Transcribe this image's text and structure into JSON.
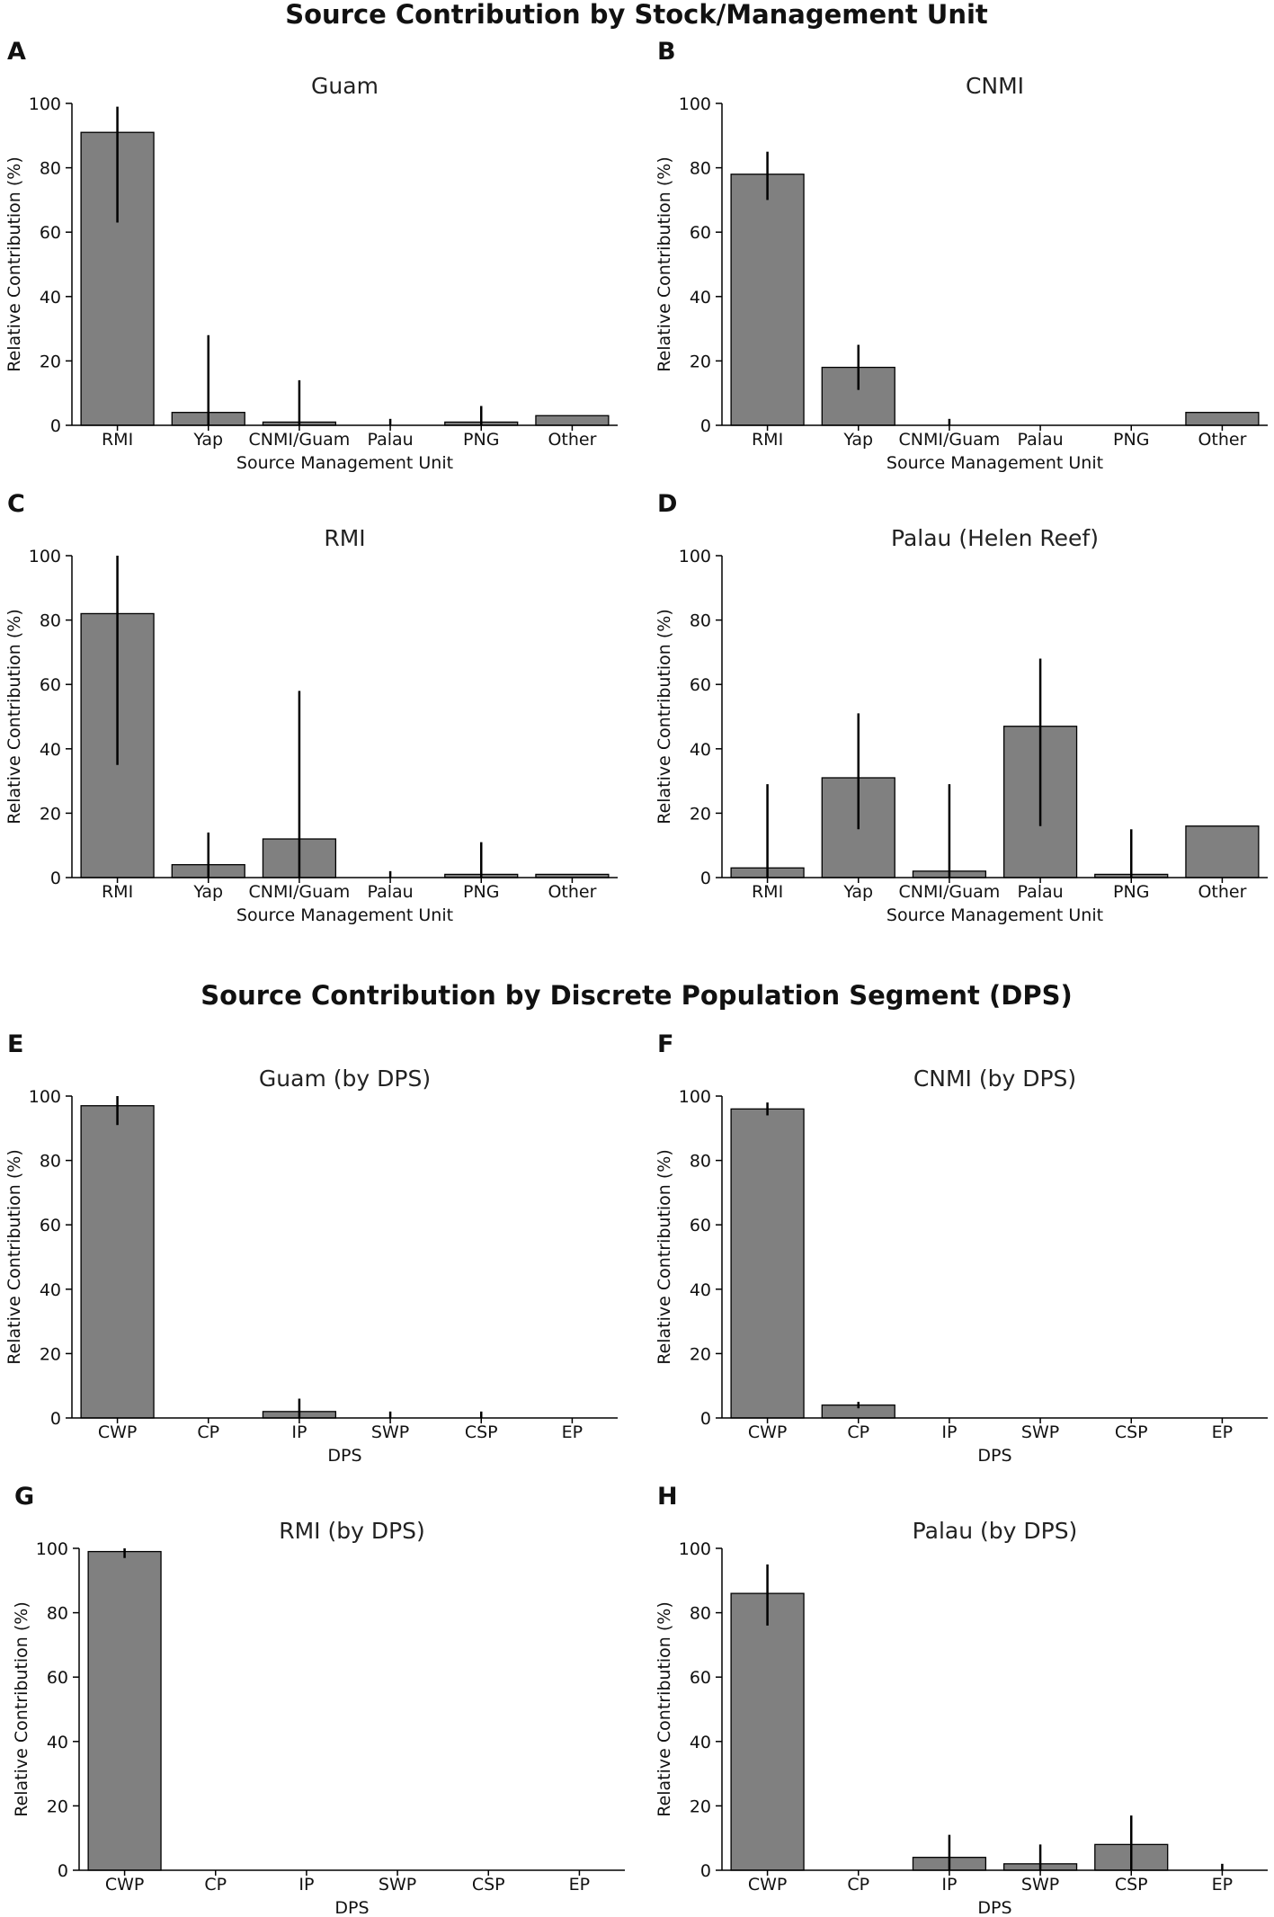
{
  "section_titles": {
    "stock": "Source Contribution by Stock/Management Unit",
    "dps": "Source Contribution by Discrete Population Segment (DPS)"
  },
  "colors": {
    "bar": "#808080",
    "edge": "#000000"
  },
  "chart_data": [
    {
      "letter": "A",
      "type": "bar",
      "title": "Guam",
      "xlabel": "Source Management Unit",
      "ylabel": "Relative Contribution (%)",
      "ylim": [
        0,
        100
      ],
      "yticks": [
        "0",
        "20",
        "40",
        "60",
        "80",
        "100"
      ],
      "categories": [
        "RMI",
        "Yap",
        "CNMI/Guam",
        "Palau",
        "PNG",
        "Other"
      ],
      "values": [
        91,
        4,
        1,
        0,
        1,
        3
      ],
      "err_low": [
        63,
        0,
        0,
        0,
        0,
        null
      ],
      "err_high": [
        99,
        28,
        14,
        2,
        6,
        null
      ]
    },
    {
      "letter": "B",
      "type": "bar",
      "title": "CNMI",
      "xlabel": "Source Management Unit",
      "ylabel": "Relative Contribution (%)",
      "ylim": [
        0,
        100
      ],
      "yticks": [
        "0",
        "20",
        "40",
        "60",
        "80",
        "100"
      ],
      "categories": [
        "RMI",
        "Yap",
        "CNMI/Guam",
        "Palau",
        "PNG",
        "Other"
      ],
      "values": [
        78,
        18,
        0,
        0,
        0,
        4
      ],
      "err_low": [
        70,
        11,
        0,
        null,
        null,
        null
      ],
      "err_high": [
        85,
        25,
        2,
        null,
        null,
        null
      ]
    },
    {
      "letter": "C",
      "type": "bar",
      "title": "RMI",
      "xlabel": "Source Management Unit",
      "ylabel": "Relative Contribution (%)",
      "ylim": [
        0,
        100
      ],
      "yticks": [
        "0",
        "20",
        "40",
        "60",
        "80",
        "100"
      ],
      "categories": [
        "RMI",
        "Yap",
        "CNMI/Guam",
        "Palau",
        "PNG",
        "Other"
      ],
      "values": [
        82,
        4,
        12,
        0,
        1,
        1
      ],
      "err_low": [
        35,
        0,
        0,
        0,
        0,
        null
      ],
      "err_high": [
        100,
        14,
        58,
        2,
        11,
        null
      ]
    },
    {
      "letter": "D",
      "type": "bar",
      "title": "Palau (Helen Reef)",
      "xlabel": "Source Management Unit",
      "ylabel": "Relative Contribution (%)",
      "ylim": [
        0,
        100
      ],
      "yticks": [
        "0",
        "20",
        "40",
        "60",
        "80",
        "100"
      ],
      "categories": [
        "RMI",
        "Yap",
        "CNMI/Guam",
        "Palau",
        "PNG",
        "Other"
      ],
      "values": [
        3,
        31,
        2,
        47,
        1,
        16
      ],
      "err_low": [
        0,
        15,
        0,
        16,
        0,
        null
      ],
      "err_high": [
        29,
        51,
        29,
        68,
        15,
        null
      ]
    },
    {
      "letter": "E",
      "type": "bar",
      "title": "Guam (by DPS)",
      "xlabel": "DPS",
      "ylabel": "Relative Contribution (%)",
      "ylim": [
        0,
        100
      ],
      "yticks": [
        "0",
        "20",
        "40",
        "60",
        "80",
        "100"
      ],
      "categories": [
        "CWP",
        "CP",
        "IP",
        "SWP",
        "CSP",
        "EP"
      ],
      "values": [
        97,
        0,
        2,
        0,
        0,
        0
      ],
      "err_low": [
        91,
        null,
        0,
        0,
        0,
        null
      ],
      "err_high": [
        100,
        null,
        6,
        2,
        2,
        null
      ]
    },
    {
      "letter": "F",
      "type": "bar",
      "title": "CNMI (by DPS)",
      "xlabel": "DPS",
      "ylabel": "Relative Contribution (%)",
      "ylim": [
        0,
        100
      ],
      "yticks": [
        "0",
        "20",
        "40",
        "60",
        "80",
        "100"
      ],
      "categories": [
        "CWP",
        "CP",
        "IP",
        "SWP",
        "CSP",
        "EP"
      ],
      "values": [
        96,
        4,
        0,
        0,
        0,
        0
      ],
      "err_low": [
        94,
        3,
        null,
        null,
        null,
        null
      ],
      "err_high": [
        98,
        5,
        null,
        null,
        null,
        null
      ]
    },
    {
      "letter": "G",
      "type": "bar",
      "title": "RMI (by DPS)",
      "xlabel": "DPS",
      "ylabel": "Relative Contribution (%)",
      "ylim": [
        0,
        100
      ],
      "yticks": [
        "0",
        "20",
        "40",
        "60",
        "80",
        "100"
      ],
      "categories": [
        "CWP",
        "CP",
        "IP",
        "SWP",
        "CSP",
        "EP"
      ],
      "values": [
        99,
        0,
        0,
        0,
        0,
        0
      ],
      "err_low": [
        97,
        null,
        null,
        null,
        null,
        null
      ],
      "err_high": [
        100,
        null,
        null,
        null,
        null,
        null
      ]
    },
    {
      "letter": "H",
      "type": "bar",
      "title": "Palau (by DPS)",
      "xlabel": "DPS",
      "ylabel": "Relative Contribution (%)",
      "ylim": [
        0,
        100
      ],
      "yticks": [
        "0",
        "20",
        "40",
        "60",
        "80",
        "100"
      ],
      "categories": [
        "CWP",
        "CP",
        "IP",
        "SWP",
        "CSP",
        "EP"
      ],
      "values": [
        86,
        0,
        4,
        2,
        8,
        0
      ],
      "err_low": [
        76,
        null,
        0,
        0,
        0,
        0
      ],
      "err_high": [
        95,
        null,
        11,
        8,
        17,
        2
      ]
    }
  ]
}
